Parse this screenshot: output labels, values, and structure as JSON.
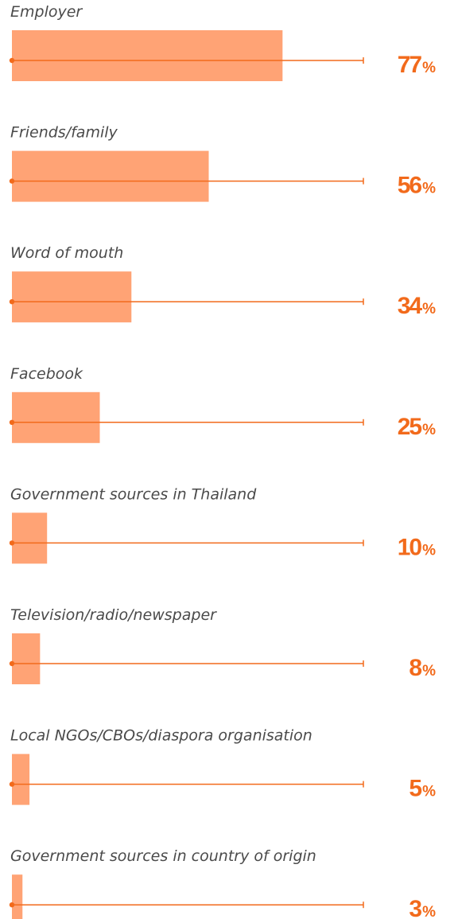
{
  "chart_data": {
    "type": "bar",
    "orientation": "horizontal",
    "categories": [
      "Employer",
      "Friends/family",
      "Word of mouth",
      "Facebook",
      "Government sources in Thailand",
      "Television/radio/newspaper",
      "Local NGOs/CBOs/diaspora organisation",
      "Government sources in country of origin"
    ],
    "values": [
      77,
      56,
      34,
      25,
      10,
      8,
      5,
      3
    ],
    "value_suffix": "%",
    "xlim": [
      0,
      100
    ],
    "grid": false,
    "legend": "none"
  },
  "colors": {
    "bar": "#FFA375",
    "line": "#F26A1B",
    "value_text": "#F26A1B",
    "label_text": "#4a4a4a"
  }
}
